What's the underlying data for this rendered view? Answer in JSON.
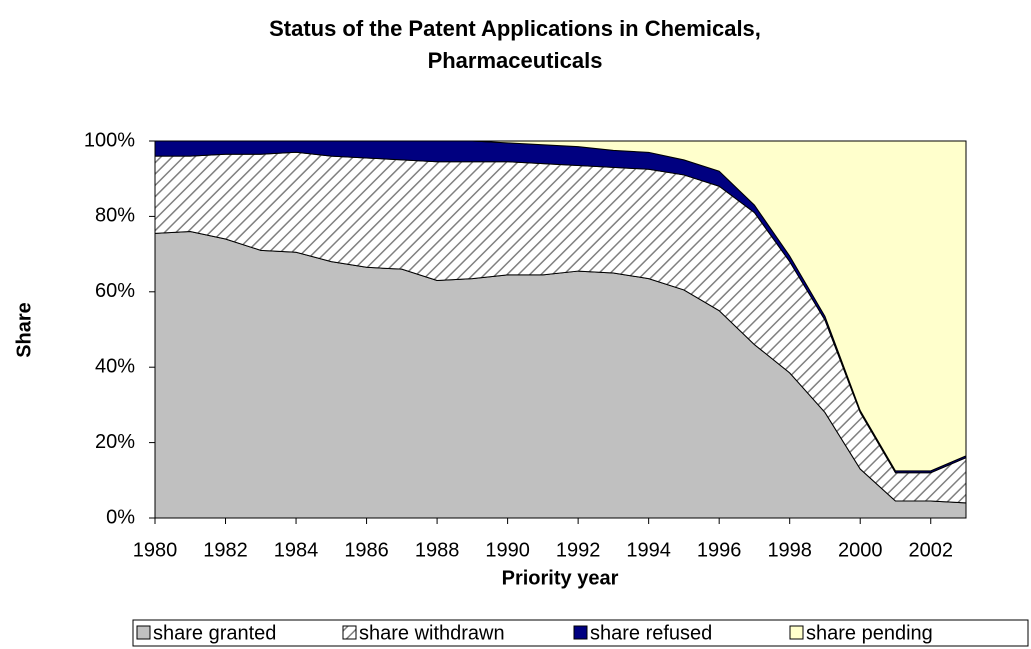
{
  "chart_data": {
    "type": "stacked_area",
    "title": [
      "Status of the Patent Applications in Chemicals,",
      "Pharmaceuticals"
    ],
    "x_label": "Priority year",
    "y_label": "Share",
    "x": [
      1980,
      1981,
      1982,
      1983,
      1984,
      1985,
      1986,
      1987,
      1988,
      1989,
      1990,
      1991,
      1992,
      1993,
      1994,
      1995,
      1996,
      1997,
      1998,
      1999,
      2000,
      2001,
      2002,
      2003
    ],
    "xlim": [
      1980,
      2003
    ],
    "xticks": [
      1980,
      1982,
      1984,
      1986,
      1988,
      1990,
      1992,
      1994,
      1996,
      1998,
      2000,
      2002
    ],
    "ylim": [
      0,
      100
    ],
    "yticks": [
      {
        "value": 0,
        "label": "0%"
      },
      {
        "value": 20,
        "label": "20%"
      },
      {
        "value": 40,
        "label": "40%"
      },
      {
        "value": 60,
        "label": "60%"
      },
      {
        "value": 80,
        "label": "80%"
      },
      {
        "value": 100,
        "label": "100%"
      }
    ],
    "series": [
      {
        "name": "share granted",
        "color": "#c0c0c0",
        "values": [
          75.5,
          76,
          74,
          71,
          70.5,
          68,
          66.5,
          66,
          63,
          63.5,
          64.5,
          64.5,
          65.5,
          65,
          63.5,
          60.5,
          55,
          46,
          38.5,
          28,
          13,
          4.5,
          4.5,
          4
        ]
      },
      {
        "name": "share withdrawn",
        "color": "#808080",
        "pattern": "hatch",
        "values": [
          20.5,
          20,
          22.5,
          25.5,
          26.5,
          28,
          29,
          29,
          31.5,
          31,
          30,
          29.5,
          28,
          28,
          29,
          30.5,
          33,
          35,
          29.5,
          24.5,
          15,
          7.5,
          7.5,
          12
        ]
      },
      {
        "name": "share refused",
        "color": "#000080",
        "values": [
          4,
          4,
          3.5,
          3.5,
          3,
          4,
          4.5,
          5,
          5.5,
          5.5,
          5,
          5,
          5,
          4.5,
          4.5,
          4,
          4,
          2,
          1.5,
          1,
          0.5,
          0.5,
          0.5,
          0.5
        ]
      },
      {
        "name": "share pending",
        "color": "#ffffcc",
        "values": [
          0,
          0,
          0,
          0,
          0,
          0,
          0,
          0,
          0,
          0,
          0.5,
          1,
          1.5,
          2.5,
          3,
          5,
          8,
          17,
          30.5,
          46.5,
          71.5,
          87.5,
          87.5,
          83.5
        ]
      }
    ],
    "legend": "bottom"
  }
}
